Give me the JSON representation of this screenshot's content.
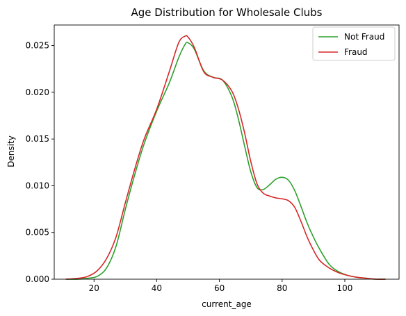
{
  "chart_data": {
    "type": "line",
    "title": "Age Distribution for Wholesale Clubs",
    "xlabel": "current_age",
    "ylabel": "Density",
    "xlim": [
      7.3,
      117.3
    ],
    "ylim": [
      0,
      0.0272
    ],
    "xticks": [
      20,
      40,
      60,
      80,
      100
    ],
    "xtick_labels": [
      "20",
      "40",
      "60",
      "80",
      "100"
    ],
    "yticks": [
      0,
      0.005,
      0.01,
      0.015,
      0.02,
      0.025
    ],
    "ytick_labels": [
      "0.000",
      "0.005",
      "0.010",
      "0.015",
      "0.020",
      "0.025"
    ],
    "grid": false,
    "legend_position": "upper right",
    "series": [
      {
        "name": "Not Fraud",
        "color": "#2ca02c",
        "x": [
          11,
          15,
          18,
          21,
          24,
          27,
          30,
          33,
          36,
          40,
          44,
          47,
          49,
          50,
          52,
          55,
          58,
          61,
          64,
          66,
          68,
          70,
          72,
          74,
          76,
          78,
          80,
          82,
          84,
          86,
          88,
          90,
          92,
          95,
          98,
          101,
          104,
          107,
          110,
          113
        ],
        "y": [
          0.0,
          0.0,
          0.0001,
          0.0003,
          0.0012,
          0.0035,
          0.0075,
          0.0112,
          0.0145,
          0.018,
          0.021,
          0.0237,
          0.0251,
          0.0253,
          0.0246,
          0.0223,
          0.0216,
          0.0213,
          0.0195,
          0.0172,
          0.0143,
          0.0115,
          0.0098,
          0.0096,
          0.0101,
          0.0107,
          0.0109,
          0.0106,
          0.0095,
          0.0078,
          0.006,
          0.0045,
          0.0032,
          0.0016,
          0.0008,
          0.0004,
          0.0002,
          0.0001,
          0.0,
          0.0
        ]
      },
      {
        "name": "Fraud",
        "color": "#d62728",
        "x": [
          11,
          15,
          18,
          21,
          24,
          27,
          30,
          33,
          36,
          40,
          44,
          47,
          49,
          50,
          52,
          55,
          58,
          61,
          64,
          66,
          68,
          70,
          72,
          74,
          76,
          78,
          80,
          82,
          84,
          86,
          88,
          90,
          92,
          95,
          98,
          101,
          104,
          107,
          110,
          113
        ],
        "y": [
          0.0,
          0.0001,
          0.0003,
          0.0009,
          0.0022,
          0.0045,
          0.0082,
          0.0118,
          0.015,
          0.0182,
          0.0222,
          0.0253,
          0.026,
          0.0259,
          0.0248,
          0.0222,
          0.0216,
          0.0213,
          0.0201,
          0.0183,
          0.0157,
          0.0126,
          0.0102,
          0.0092,
          0.0089,
          0.0087,
          0.0086,
          0.0084,
          0.0077,
          0.0062,
          0.0045,
          0.0031,
          0.002,
          0.0012,
          0.0007,
          0.0004,
          0.0002,
          0.0001,
          0.0,
          0.0
        ]
      }
    ]
  }
}
